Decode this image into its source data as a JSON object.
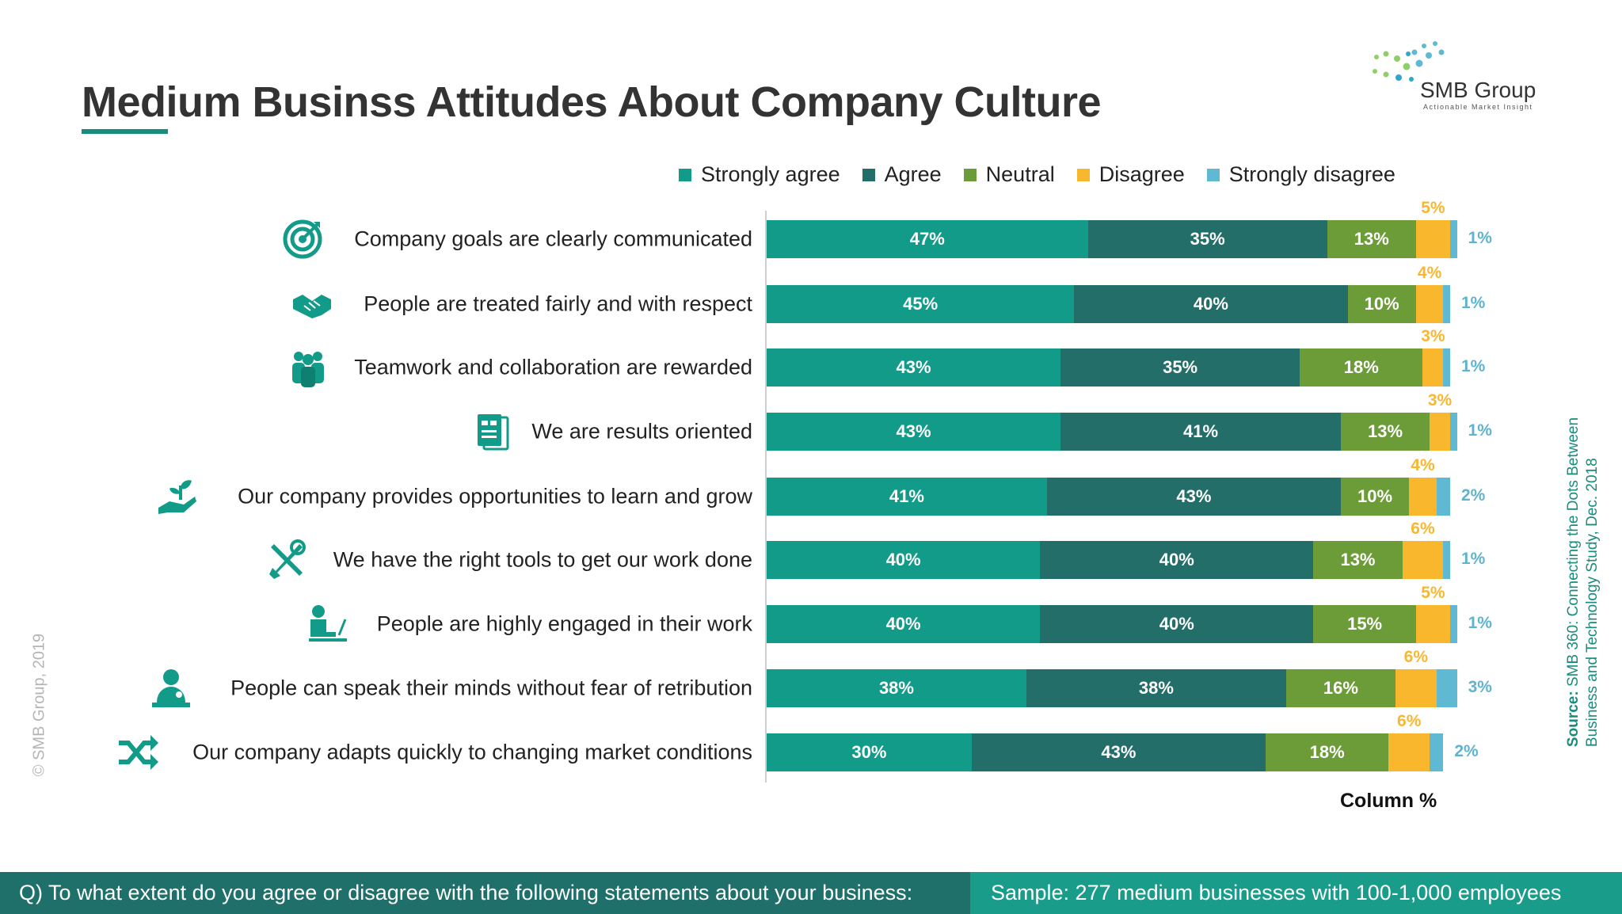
{
  "title": "Medium Businss Attitudes About Company Culture",
  "logo": {
    "name": "SMB Group",
    "tagline": "Actionable Market Insight"
  },
  "copyright": "© SMB Group, 2019",
  "source": {
    "label": "Source:",
    "line1": "SMB 360: Connecting the Dots Between",
    "line2": "Business and Technology  Study, Dec. 2018"
  },
  "footer": {
    "question": "Q) To what extent do you agree or disagree with the following statements about your business:",
    "sample": "Sample: 277 medium businesses with 100-1,000 employees"
  },
  "colors": {
    "strongly_agree": "#139b89",
    "agree": "#236e69",
    "neutral": "#6c9c38",
    "disagree": "#f9b72d",
    "strongly_disagree": "#5fb9d2",
    "accent": "#1a8c7e"
  },
  "chart_data": {
    "type": "bar",
    "orientation": "horizontal",
    "stacked": true,
    "xlabel": "Column %",
    "xlim": [
      0,
      100
    ],
    "legend_position": "top",
    "grid": false,
    "categories": [
      "Company goals are clearly communicated",
      "People are treated fairly and with respect",
      "Teamwork and collaboration are rewarded",
      "We are results oriented",
      "Our company provides opportunities to learn and grow",
      "We have the right tools to get our work done",
      "People are highly engaged in their work",
      "People can speak their minds without fear of retribution",
      "Our company adapts quickly to changing market conditions"
    ],
    "icons": [
      "target-icon",
      "handshake-icon",
      "team-icon",
      "results-icon",
      "growth-icon",
      "tools-icon",
      "engaged-worker-icon",
      "speaker-icon",
      "shuffle-icon"
    ],
    "series": [
      {
        "name": "Strongly agree",
        "values": [
          47,
          45,
          43,
          43,
          41,
          40,
          40,
          38,
          30
        ]
      },
      {
        "name": "Agree",
        "values": [
          35,
          40,
          35,
          41,
          43,
          40,
          40,
          38,
          43
        ]
      },
      {
        "name": "Neutral",
        "values": [
          13,
          10,
          18,
          13,
          10,
          13,
          15,
          16,
          18
        ]
      },
      {
        "name": "Disagree",
        "values": [
          5,
          4,
          3,
          3,
          4,
          6,
          5,
          6,
          6
        ]
      },
      {
        "name": "Strongly disagree",
        "values": [
          1,
          1,
          1,
          1,
          2,
          1,
          1,
          3,
          2
        ]
      }
    ]
  }
}
